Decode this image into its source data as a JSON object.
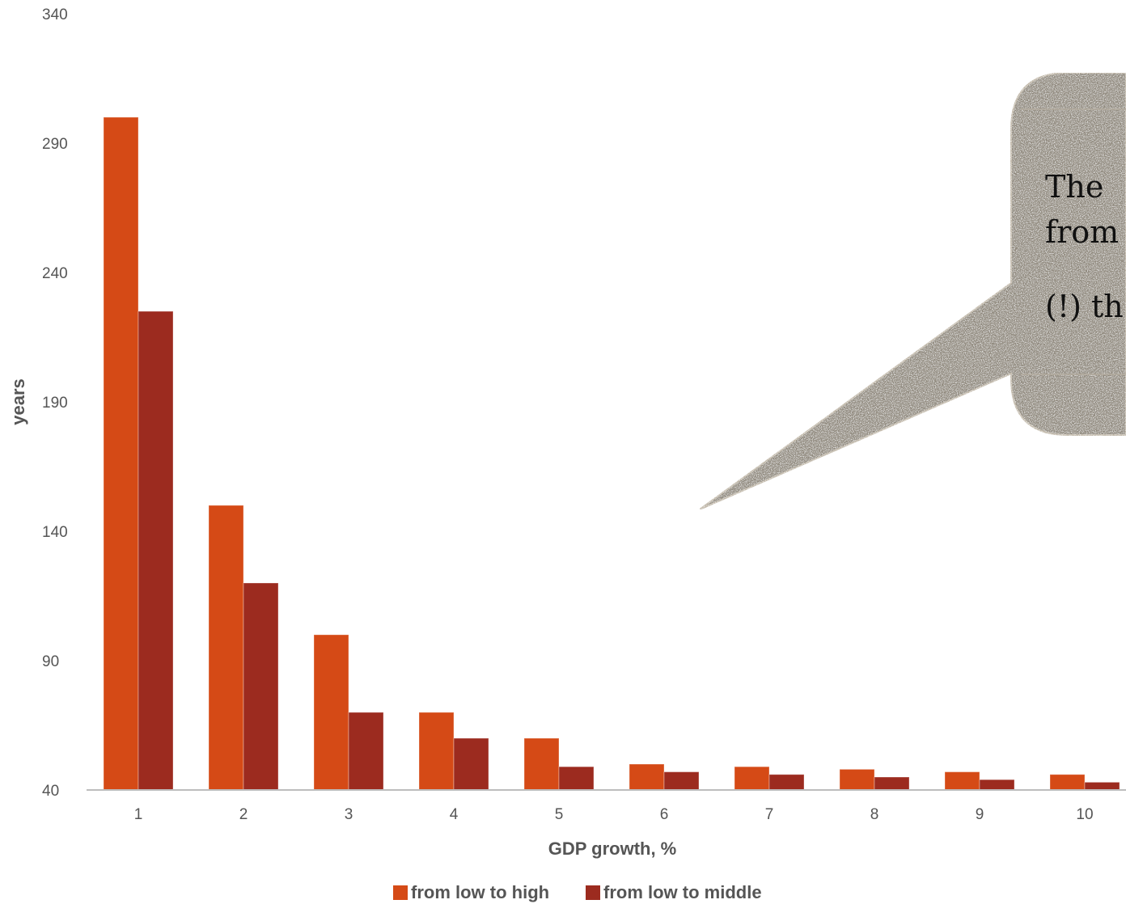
{
  "chart_data": {
    "type": "bar",
    "title": "",
    "xlabel": "GDP growth, %",
    "ylabel": "years",
    "ylim": [
      40,
      340
    ],
    "yticks": [
      40,
      90,
      140,
      190,
      240,
      290,
      340
    ],
    "categories": [
      "1",
      "2",
      "3",
      "4",
      "5",
      "6",
      "7",
      "8",
      "9",
      "10"
    ],
    "series": [
      {
        "name": "from low to high",
        "color": "#d54a16",
        "values": [
          300,
          150,
          100,
          70,
          60,
          50,
          49,
          48,
          47,
          46
        ]
      },
      {
        "name": "from low to middle",
        "color": "#9c2b1f",
        "values": [
          225,
          120,
          70,
          60,
          49,
          47,
          46,
          45,
          44,
          43
        ]
      }
    ],
    "legend_position": "bottom-center",
    "grid": false
  },
  "callout": {
    "line1": "The",
    "line2": "from",
    "line3": "(!) th",
    "fill": "#8f887b"
  }
}
